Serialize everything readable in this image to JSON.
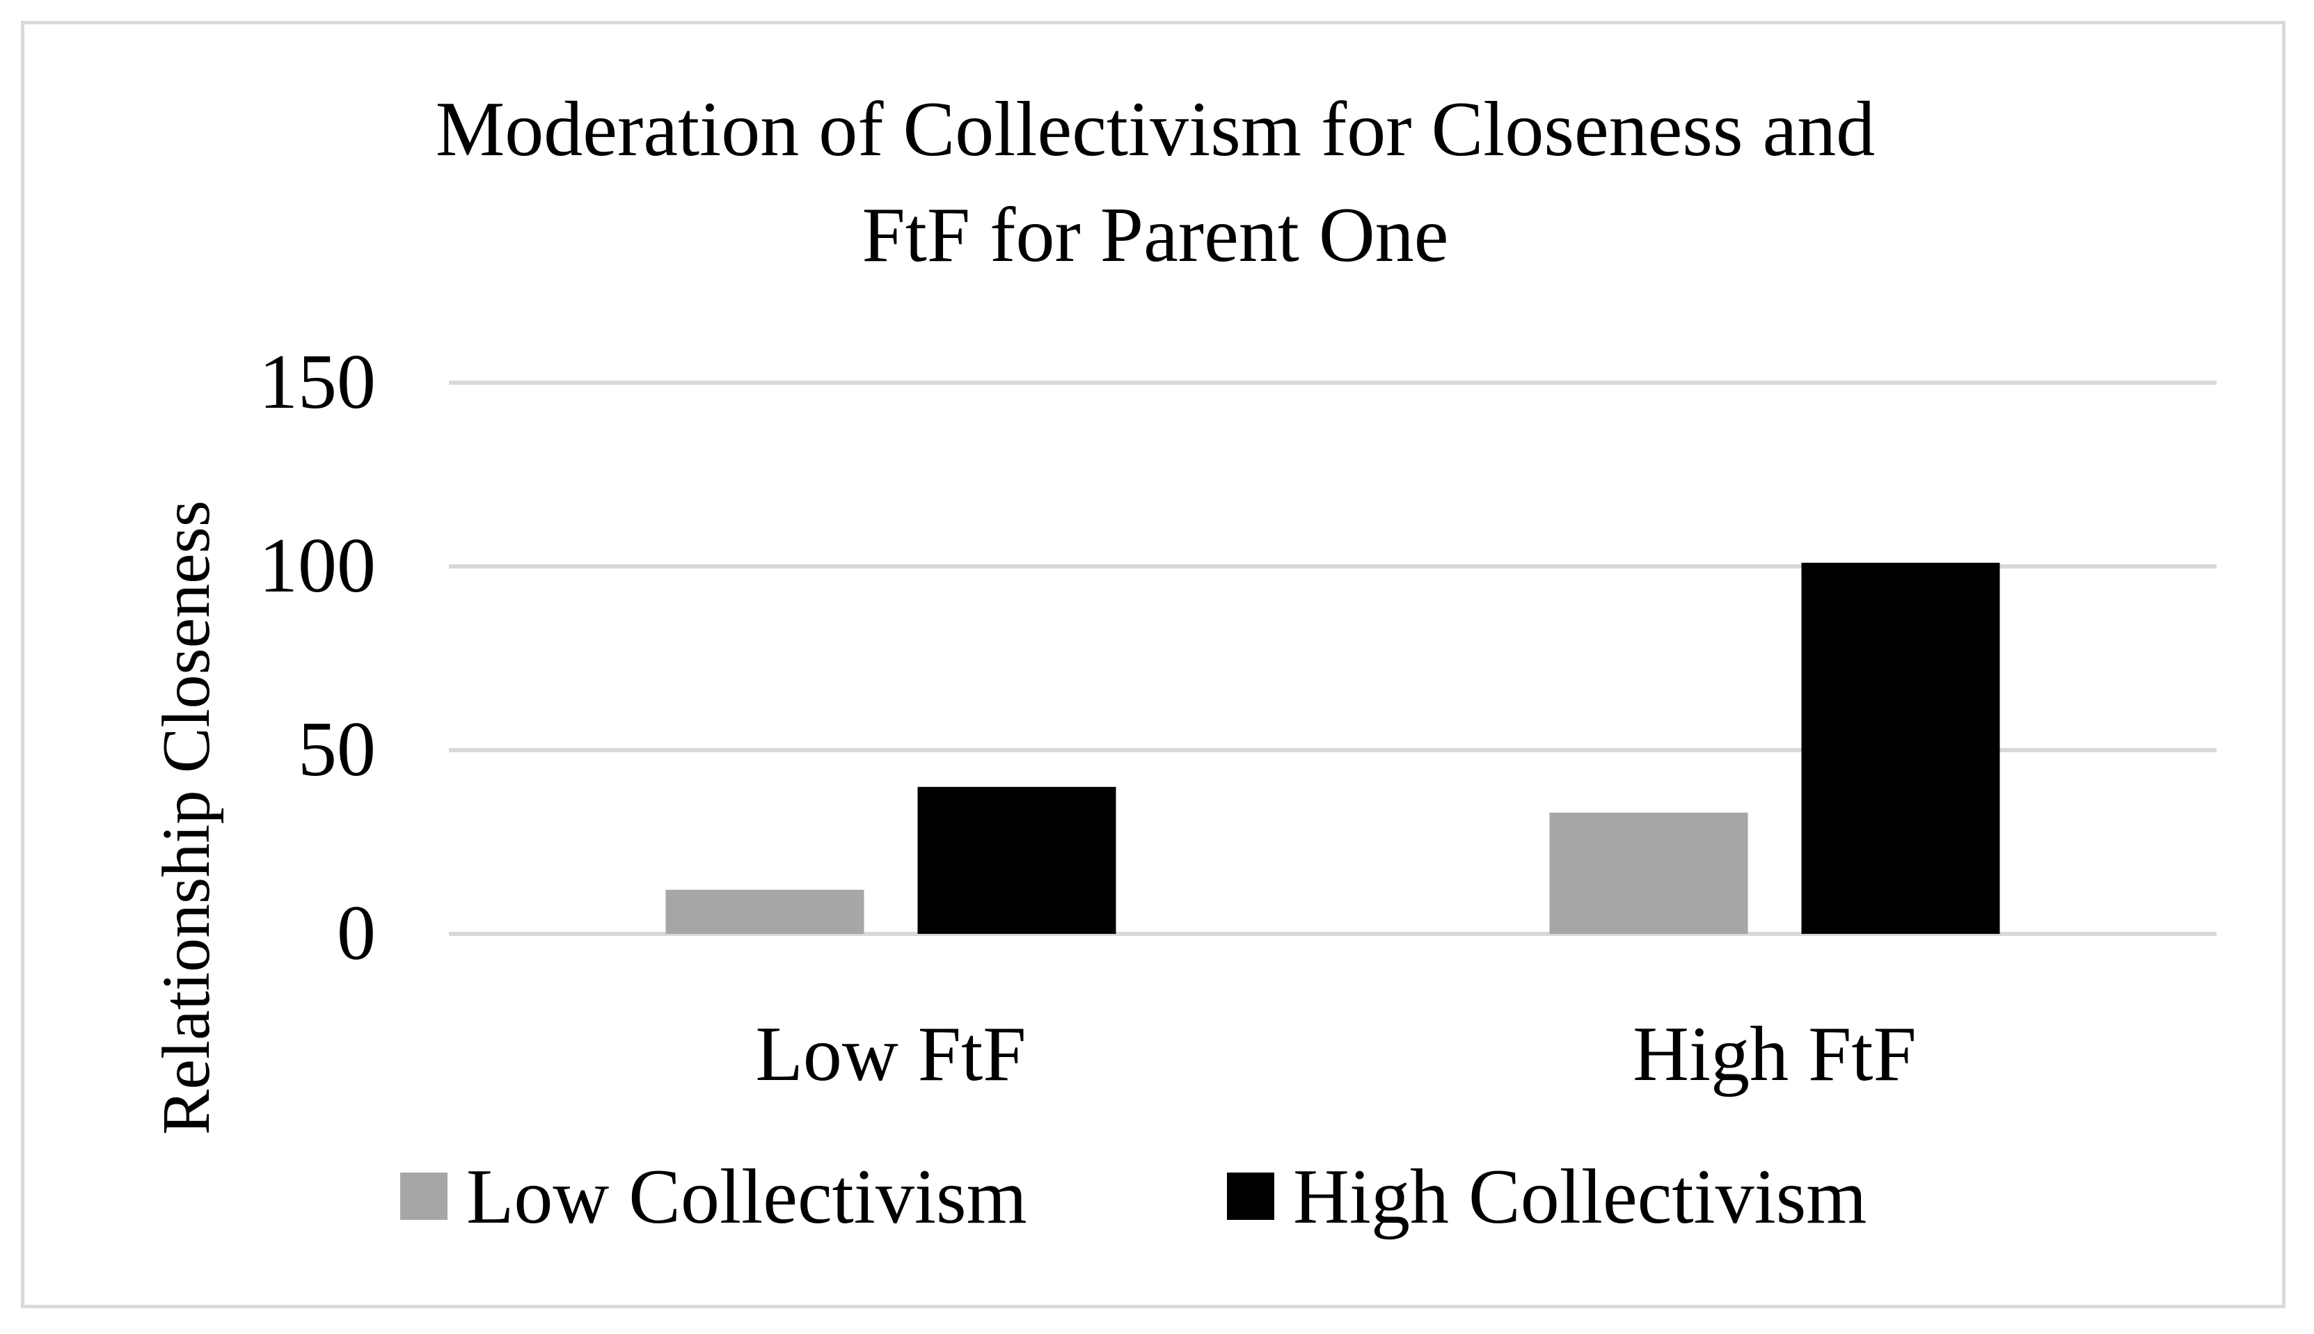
{
  "chart_data": {
    "type": "bar",
    "title": [
      "Moderation of Collectivism for Closeness and",
      "FtF for Parent One"
    ],
    "xlabel": "",
    "ylabel": "Relationship Closeness",
    "categories": [
      "Low FtF",
      "High FtF"
    ],
    "series": [
      {
        "name": "Low Collectivism",
        "color": "#a6a6a6",
        "values": [
          12,
          33
        ]
      },
      {
        "name": "High Collectivism",
        "color": "#000000",
        "values": [
          40,
          101
        ]
      }
    ],
    "ylim": [
      0,
      150
    ],
    "yticks": [
      0,
      50,
      100,
      150
    ],
    "grid": true,
    "gridline_color": "#d9d9d9",
    "legend_position": "bottom"
  }
}
